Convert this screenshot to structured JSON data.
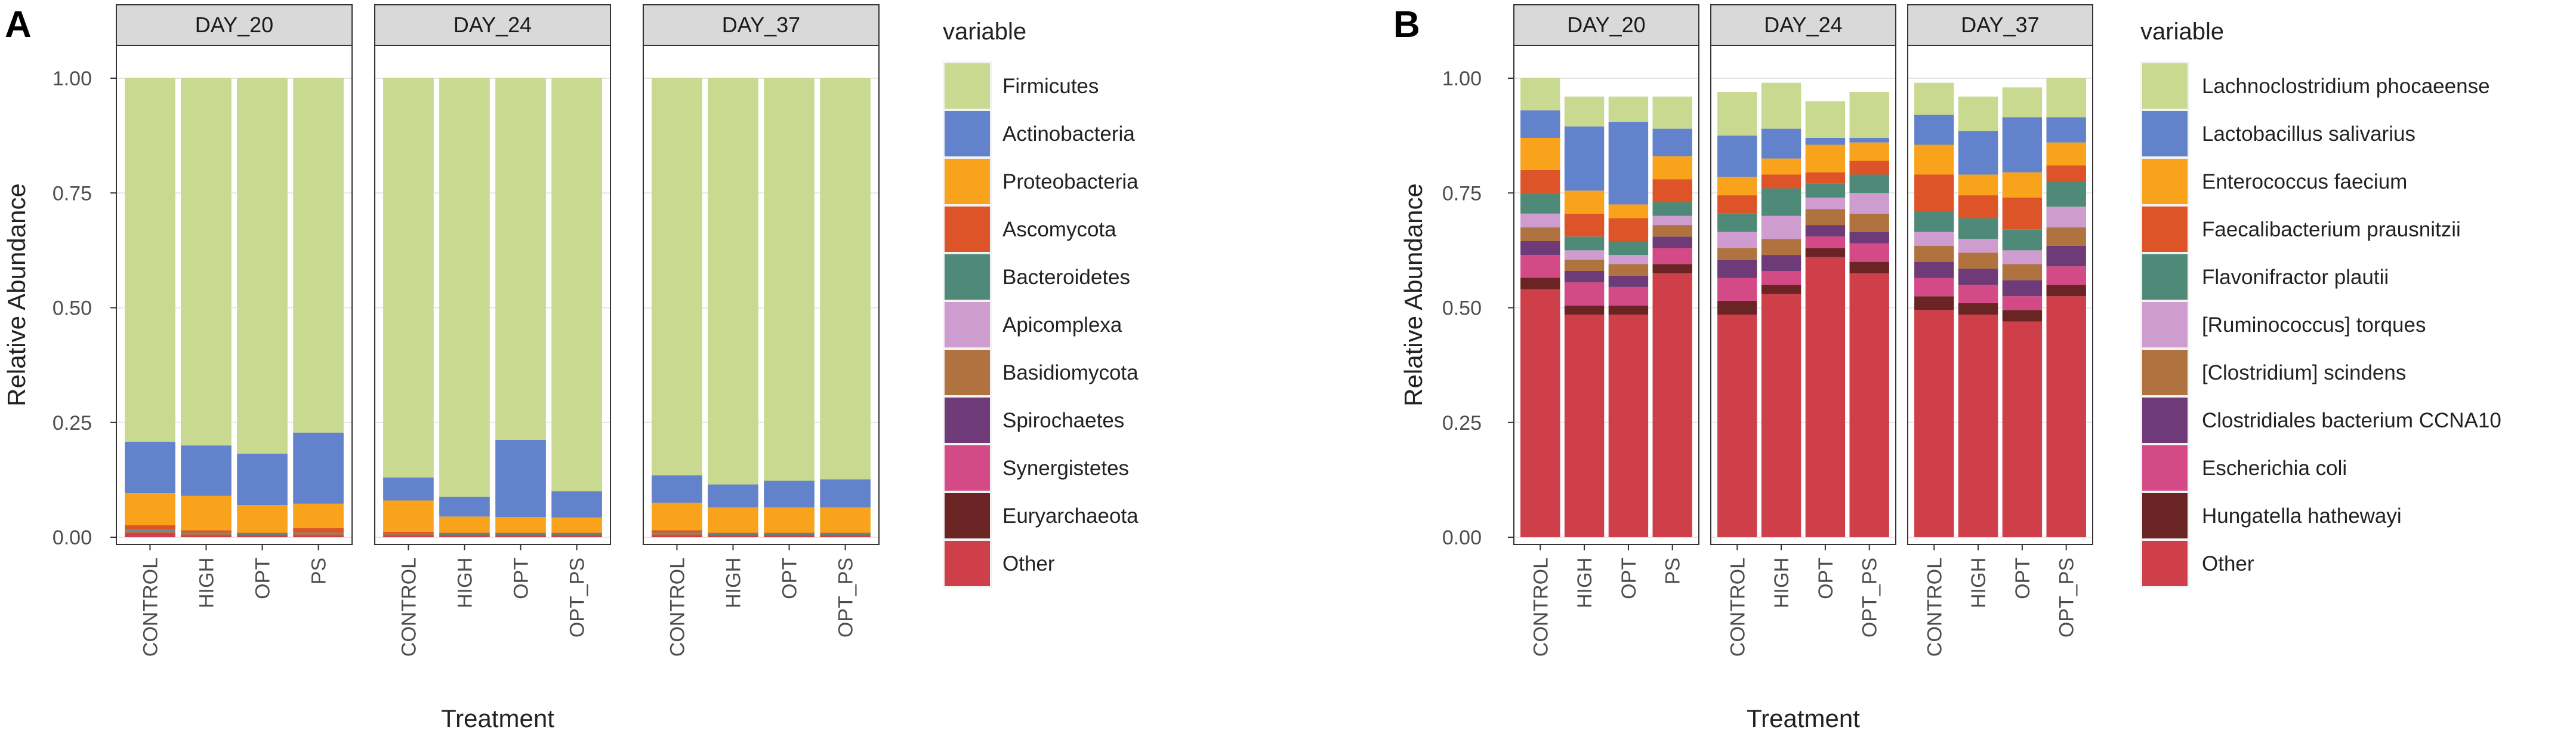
{
  "panels": [
    {
      "label": "A",
      "chart_data": {
        "type": "bar",
        "stacked": true,
        "title": "",
        "xlabel": "Treatment",
        "ylabel": "Relative Abundance",
        "ylim": [
          0,
          1
        ],
        "yticks": [
          "0.00",
          "0.25",
          "0.50",
          "0.75",
          "1.00"
        ],
        "legend": {
          "title": "variable",
          "position": "right"
        },
        "series": [
          {
            "name": "Firmicutes",
            "color": "#c9d98f"
          },
          {
            "name": "Actinobacteria",
            "color": "#6282cc"
          },
          {
            "name": "Proteobacteria",
            "color": "#f9a31d"
          },
          {
            "name": "Ascomycota",
            "color": "#dc5428"
          },
          {
            "name": "Bacteroidetes",
            "color": "#4f8a78"
          },
          {
            "name": "Apicomplexa",
            "color": "#cf9ccf"
          },
          {
            "name": "Basidiomycota",
            "color": "#b0723f"
          },
          {
            "name": "Spirochaetes",
            "color": "#6e3a77"
          },
          {
            "name": "Synergistetes",
            "color": "#d44a86"
          },
          {
            "name": "Euryarchaeota",
            "color": "#6b2424"
          },
          {
            "name": "Other",
            "color": "#cf3f4a"
          }
        ],
        "facets": [
          {
            "name": "DAY_20",
            "bars": [
              {
                "category": "CONTROL",
                "values": [
                  0.792,
                  0.112,
                  0.07,
                  0.01,
                  0.002,
                  0.001,
                  0.003,
                  0.0,
                  0.0,
                  0.0,
                  0.01
                ]
              },
              {
                "category": "HIGH",
                "values": [
                  0.8,
                  0.11,
                  0.075,
                  0.005,
                  0.002,
                  0.0,
                  0.003,
                  0.0,
                  0.0,
                  0.0,
                  0.005
                ]
              },
              {
                "category": "OPT",
                "values": [
                  0.818,
                  0.112,
                  0.06,
                  0.003,
                  0.002,
                  0.0,
                  0.0,
                  0.0,
                  0.0,
                  0.0,
                  0.005
                ]
              },
              {
                "category": "PS",
                "values": [
                  0.772,
                  0.155,
                  0.053,
                  0.01,
                  0.002,
                  0.0,
                  0.003,
                  0.0,
                  0.0,
                  0.0,
                  0.005
                ]
              }
            ]
          },
          {
            "name": "DAY_24",
            "bars": [
              {
                "category": "CONTROL",
                "values": [
                  0.87,
                  0.05,
                  0.068,
                  0.003,
                  0.002,
                  0.0,
                  0.002,
                  0.0,
                  0.0,
                  0.0,
                  0.005
                ]
              },
              {
                "category": "HIGH",
                "values": [
                  0.912,
                  0.043,
                  0.035,
                  0.003,
                  0.002,
                  0.0,
                  0.0,
                  0.0,
                  0.0,
                  0.0,
                  0.005
                ]
              },
              {
                "category": "OPT",
                "values": [
                  0.788,
                  0.168,
                  0.034,
                  0.003,
                  0.002,
                  0.0,
                  0.0,
                  0.0,
                  0.0,
                  0.0,
                  0.005
                ]
              },
              {
                "category": "OPT_PS",
                "values": [
                  0.9,
                  0.057,
                  0.033,
                  0.003,
                  0.002,
                  0.0,
                  0.0,
                  0.0,
                  0.0,
                  0.0,
                  0.005
                ]
              }
            ]
          },
          {
            "name": "DAY_37",
            "bars": [
              {
                "category": "CONTROL",
                "values": [
                  0.865,
                  0.06,
                  0.06,
                  0.005,
                  0.002,
                  0.0,
                  0.003,
                  0.0,
                  0.0,
                  0.0,
                  0.005
                ]
              },
              {
                "category": "HIGH",
                "values": [
                  0.885,
                  0.05,
                  0.055,
                  0.003,
                  0.002,
                  0.0,
                  0.0,
                  0.0,
                  0.0,
                  0.0,
                  0.005
                ]
              },
              {
                "category": "OPT",
                "values": [
                  0.877,
                  0.058,
                  0.055,
                  0.003,
                  0.002,
                  0.0,
                  0.0,
                  0.0,
                  0.0,
                  0.0,
                  0.005
                ]
              },
              {
                "category": "OPT_PS",
                "values": [
                  0.874,
                  0.061,
                  0.055,
                  0.003,
                  0.002,
                  0.0,
                  0.0,
                  0.0,
                  0.0,
                  0.0,
                  0.005
                ]
              }
            ]
          }
        ]
      }
    },
    {
      "label": "B",
      "chart_data": {
        "type": "bar",
        "stacked": true,
        "title": "",
        "xlabel": "Treatment",
        "ylabel": "Relative Abundance",
        "ylim": [
          0,
          1
        ],
        "yticks": [
          "0.00",
          "0.25",
          "0.50",
          "0.75",
          "1.00"
        ],
        "legend": {
          "title": "variable",
          "position": "right"
        },
        "series": [
          {
            "name": "Lachnoclostridium phocaeense",
            "color": "#c9d98f"
          },
          {
            "name": "Lactobacillus salivarius",
            "color": "#6282cc"
          },
          {
            "name": "Enterococcus faecium",
            "color": "#f9a31d"
          },
          {
            "name": "Faecalibacterium prausnitzii",
            "color": "#dc5428"
          },
          {
            "name": "Flavonifractor plautii",
            "color": "#4f8a78"
          },
          {
            "name": "[Ruminococcus] torques",
            "color": "#cf9ccf"
          },
          {
            "name": "[Clostridium] scindens",
            "color": "#b0723f"
          },
          {
            "name": "Clostridiales bacterium CCNA10",
            "color": "#6e3a77"
          },
          {
            "name": "Escherichia coli",
            "color": "#d44a86"
          },
          {
            "name": "Hungatella hathewayi",
            "color": "#6b2424"
          },
          {
            "name": "Other",
            "color": "#cf3f4a"
          }
        ],
        "facets": [
          {
            "name": "DAY_20",
            "bars": [
              {
                "category": "CONTROL",
                "values": [
                  0.07,
                  0.06,
                  0.07,
                  0.05,
                  0.045,
                  0.03,
                  0.03,
                  0.03,
                  0.05,
                  0.025,
                  0.54
                ]
              },
              {
                "category": "HIGH",
                "values": [
                  0.065,
                  0.14,
                  0.05,
                  0.05,
                  0.03,
                  0.02,
                  0.025,
                  0.025,
                  0.05,
                  0.02,
                  0.485
                ]
              },
              {
                "category": "OPT",
                "values": [
                  0.055,
                  0.18,
                  0.03,
                  0.05,
                  0.03,
                  0.02,
                  0.025,
                  0.025,
                  0.04,
                  0.02,
                  0.485
                ]
              },
              {
                "category": "PS",
                "values": [
                  0.07,
                  0.06,
                  0.05,
                  0.05,
                  0.03,
                  0.02,
                  0.025,
                  0.025,
                  0.035,
                  0.02,
                  0.575
                ]
              }
            ]
          },
          {
            "name": "DAY_24",
            "bars": [
              {
                "category": "CONTROL",
                "values": [
                  0.095,
                  0.09,
                  0.04,
                  0.04,
                  0.04,
                  0.035,
                  0.025,
                  0.04,
                  0.05,
                  0.03,
                  0.485
                ]
              },
              {
                "category": "HIGH",
                "values": [
                  0.1,
                  0.065,
                  0.035,
                  0.03,
                  0.06,
                  0.05,
                  0.035,
                  0.035,
                  0.03,
                  0.02,
                  0.53
                ]
              },
              {
                "category": "OPT",
                "values": [
                  0.08,
                  0.015,
                  0.06,
                  0.025,
                  0.03,
                  0.025,
                  0.035,
                  0.025,
                  0.025,
                  0.02,
                  0.61
                ]
              },
              {
                "category": "OPT_PS",
                "values": [
                  0.1,
                  0.01,
                  0.04,
                  0.03,
                  0.04,
                  0.045,
                  0.04,
                  0.025,
                  0.04,
                  0.025,
                  0.575
                ]
              }
            ]
          },
          {
            "name": "DAY_37",
            "bars": [
              {
                "category": "CONTROL",
                "values": [
                  0.07,
                  0.065,
                  0.065,
                  0.08,
                  0.045,
                  0.03,
                  0.035,
                  0.035,
                  0.04,
                  0.03,
                  0.495
                ]
              },
              {
                "category": "HIGH",
                "values": [
                  0.075,
                  0.095,
                  0.045,
                  0.05,
                  0.045,
                  0.03,
                  0.035,
                  0.035,
                  0.04,
                  0.025,
                  0.485
                ]
              },
              {
                "category": "OPT",
                "values": [
                  0.065,
                  0.12,
                  0.055,
                  0.07,
                  0.045,
                  0.03,
                  0.035,
                  0.035,
                  0.03,
                  0.025,
                  0.47
                ]
              },
              {
                "category": "OPT_PS",
                "values": [
                  0.085,
                  0.055,
                  0.05,
                  0.035,
                  0.055,
                  0.045,
                  0.04,
                  0.045,
                  0.04,
                  0.025,
                  0.525
                ]
              }
            ]
          }
        ]
      }
    }
  ]
}
